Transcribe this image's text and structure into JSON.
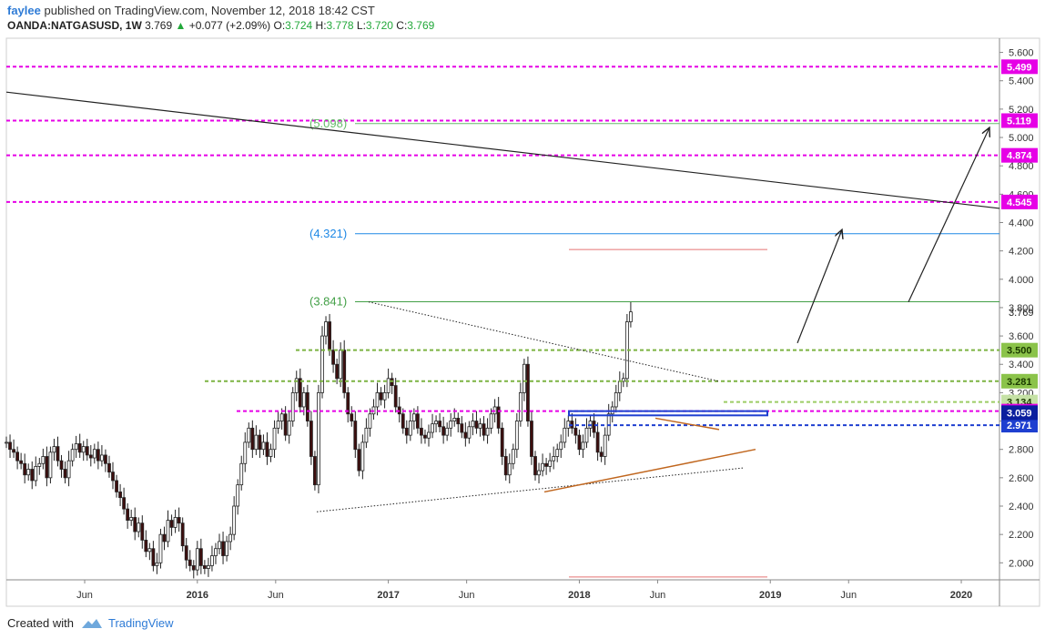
{
  "header": {
    "author": "faylee",
    "published_text": "published on TradingView.com, November 12, 2018 18:42 CST",
    "symbol": "OANDA:NATGASUSD, 1W",
    "last": "3.769",
    "arrow": "▲",
    "change": "+0.077 (+2.09%)",
    "o_label": "O:",
    "o_value": "3.724",
    "h_label": "H:",
    "h_value": "3.778",
    "l_label": "L:",
    "l_value": "3.720",
    "c_label": "C:",
    "c_value": "3.769"
  },
  "footer": {
    "created_with": "Created with",
    "brand": "TradingView"
  },
  "chart_data": {
    "type": "candlestick",
    "ylim": [
      1.88,
      5.7
    ],
    "y_ticks": [
      "2.000",
      "2.200",
      "2.400",
      "2.600",
      "2.800",
      "3.000",
      "3.200",
      "3.400",
      "3.600",
      "3.800",
      "4.000",
      "4.200",
      "4.400",
      "4.600",
      "4.800",
      "5.000",
      "5.200",
      "5.400",
      "5.600"
    ],
    "y_tick_values": [
      2.0,
      2.2,
      2.4,
      2.6,
      2.8,
      3.0,
      3.2,
      3.4,
      3.6,
      3.8,
      4.0,
      4.2,
      4.4,
      4.6,
      4.8,
      5.0,
      5.2,
      5.4,
      5.6
    ],
    "x_ticks": [
      {
        "label": "Jun",
        "year": 2015.41
      },
      {
        "label": "2016",
        "year": 2016.0
      },
      {
        "label": "Jun",
        "year": 2016.41
      },
      {
        "label": "2017",
        "year": 2017.0
      },
      {
        "label": "Jun",
        "year": 2017.41
      },
      {
        "label": "2018",
        "year": 2018.0
      },
      {
        "label": "Jun",
        "year": 2018.41
      },
      {
        "label": "2019",
        "year": 2019.0
      },
      {
        "label": "Jun",
        "year": 2019.41
      },
      {
        "label": "2020",
        "year": 2020.0
      }
    ],
    "xlim": [
      2015.0,
      2020.2
    ],
    "last_price": {
      "label": "3.769",
      "value": 3.769
    },
    "horizontal_lines": [
      {
        "value": 5.499,
        "label": "5.499",
        "color": "#e600e6",
        "style": "dashed"
      },
      {
        "value": 5.119,
        "label": "5.119",
        "color": "#e600e6",
        "style": "dashed"
      },
      {
        "value": 4.874,
        "label": "4.874",
        "color": "#e600e6",
        "style": "dashed"
      },
      {
        "value": 4.545,
        "label": "4.545",
        "color": "#e600e6",
        "style": "dashed"
      },
      {
        "value": 3.5,
        "label": "3.500",
        "color": "#7cb342",
        "style": "dashed"
      },
      {
        "value": 3.281,
        "label": "3.281",
        "color": "#7cb342",
        "style": "dashed"
      },
      {
        "value": 3.134,
        "label": "3.134",
        "color": "#9ccc65",
        "style": "dashed"
      },
      {
        "value": 3.07,
        "label": "3.070",
        "color": "#e600e6",
        "style": "dashed"
      },
      {
        "value": 2.971,
        "label": "2.971",
        "color": "#1e3fd0",
        "style": "dashed"
      }
    ],
    "extra_label": {
      "value": 3.059,
      "label": "3.059",
      "color": "#0b1f9e"
    },
    "fib_levels": [
      {
        "value": 5.098,
        "label": "(5.098)",
        "color": "#66bb6a"
      },
      {
        "value": 4.321,
        "label": "(4.321)",
        "color": "#1e88e5"
      },
      {
        "value": 3.841,
        "label": "(3.841)",
        "color": "#43a047"
      }
    ],
    "weekly_closes_start": 2015.0,
    "weekly_closes": [
      2.85,
      2.8,
      2.78,
      2.72,
      2.7,
      2.62,
      2.66,
      2.58,
      2.68,
      2.7,
      2.75,
      2.6,
      2.78,
      2.82,
      2.72,
      2.66,
      2.6,
      2.72,
      2.8,
      2.84,
      2.78,
      2.82,
      2.76,
      2.74,
      2.8,
      2.72,
      2.76,
      2.7,
      2.64,
      2.58,
      2.5,
      2.46,
      2.38,
      2.3,
      2.32,
      2.22,
      2.28,
      2.16,
      2.08,
      2.1,
      1.98,
      2.0,
      2.2,
      2.15,
      2.3,
      2.25,
      2.32,
      2.28,
      2.12,
      2.02,
      1.98,
      1.95,
      2.1,
      1.98,
      1.96,
      1.98,
      2.05,
      2.1,
      2.15,
      2.05,
      2.15,
      2.2,
      2.4,
      2.55,
      2.7,
      2.85,
      2.95,
      2.8,
      2.9,
      2.8,
      2.85,
      2.75,
      2.8,
      2.95,
      3.0,
      3.05,
      2.9,
      3.0,
      3.2,
      3.3,
      3.1,
      3.2,
      3.0,
      2.75,
      2.55,
      3.2,
      3.6,
      3.7,
      3.5,
      3.4,
      3.3,
      3.5,
      3.2,
      3.05,
      3.0,
      2.8,
      2.65,
      2.85,
      2.95,
      3.05,
      3.1,
      3.2,
      3.15,
      3.2,
      3.3,
      3.25,
      3.1,
      3.05,
      2.95,
      2.9,
      3.0,
      3.05,
      2.95,
      2.9,
      2.88,
      2.92,
      2.98,
      3.0,
      2.96,
      2.9,
      2.95,
      3.0,
      3.02,
      2.98,
      2.92,
      2.88,
      2.96,
      3.0,
      2.95,
      2.98,
      2.9,
      2.95,
      3.05,
      3.1,
      2.95,
      2.75,
      2.62,
      2.7,
      2.8,
      3.0,
      3.2,
      3.4,
      3.0,
      2.75,
      2.62,
      2.65,
      2.7,
      2.68,
      2.72,
      2.75,
      2.8,
      2.85,
      2.95,
      3.0,
      2.95,
      2.9,
      2.8,
      2.85,
      2.95,
      3.0,
      2.92,
      2.78,
      2.75,
      2.9,
      3.05,
      3.1,
      3.2,
      3.28,
      3.3,
      3.7,
      3.77
    ]
  }
}
